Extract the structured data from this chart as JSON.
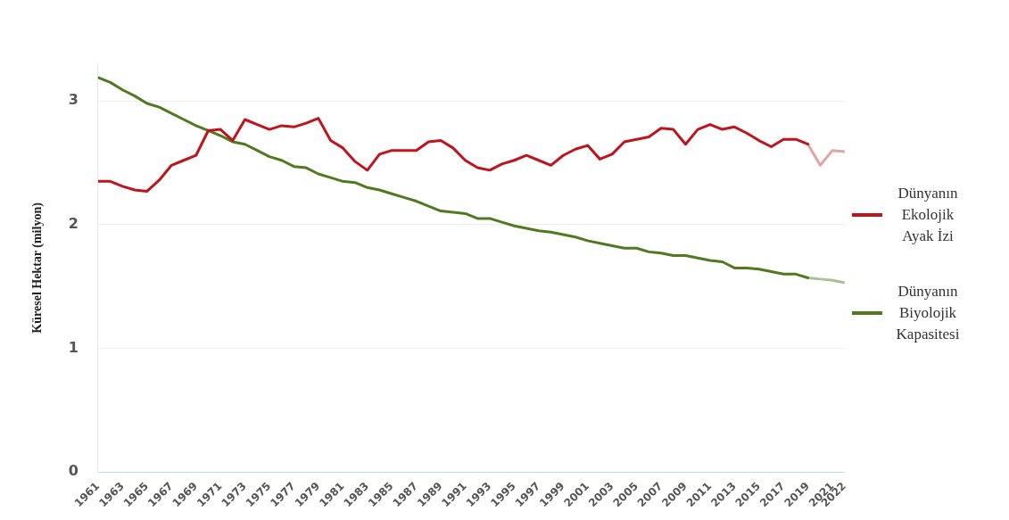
{
  "chart_data": {
    "type": "line",
    "ylabel": "Küresel Hektar (milyon)",
    "x": [
      1961,
      1962,
      1963,
      1964,
      1965,
      1966,
      1967,
      1968,
      1969,
      1970,
      1971,
      1972,
      1973,
      1974,
      1975,
      1976,
      1977,
      1978,
      1979,
      1980,
      1981,
      1982,
      1983,
      1984,
      1985,
      1986,
      1987,
      1988,
      1989,
      1990,
      1991,
      1992,
      1993,
      1994,
      1995,
      1996,
      1997,
      1998,
      1999,
      2000,
      2001,
      2002,
      2003,
      2004,
      2005,
      2006,
      2007,
      2008,
      2009,
      2010,
      2011,
      2012,
      2013,
      2014,
      2015,
      2016,
      2017,
      2018,
      2019,
      2020,
      2021,
      2022
    ],
    "series": [
      {
        "name": "Dünyanın Ekolojik Ayak İzi",
        "color": "#c0141c",
        "values": [
          2.35,
          2.35,
          2.31,
          2.28,
          2.27,
          2.36,
          2.48,
          2.52,
          2.56,
          2.76,
          2.77,
          2.68,
          2.85,
          2.81,
          2.77,
          2.8,
          2.79,
          2.82,
          2.86,
          2.68,
          2.62,
          2.51,
          2.44,
          2.57,
          2.6,
          2.6,
          2.6,
          2.67,
          2.68,
          2.62,
          2.52,
          2.46,
          2.44,
          2.49,
          2.52,
          2.56,
          2.52,
          2.48,
          2.56,
          2.61,
          2.64,
          2.53,
          2.57,
          2.67,
          2.69,
          2.71,
          2.78,
          2.77,
          2.65,
          2.77,
          2.81,
          2.77,
          2.79,
          2.74,
          2.68,
          2.63,
          2.69,
          2.69,
          2.65,
          null,
          null,
          null
        ]
      },
      {
        "name": "Dünyanın Biyolojik Kapasitesi",
        "color": "#4f7a1e",
        "values": [
          3.19,
          3.15,
          3.09,
          3.04,
          2.98,
          2.95,
          2.9,
          2.85,
          2.8,
          2.76,
          2.72,
          2.67,
          2.65,
          2.6,
          2.55,
          2.52,
          2.47,
          2.46,
          2.41,
          2.38,
          2.35,
          2.34,
          2.3,
          2.28,
          2.25,
          2.22,
          2.19,
          2.15,
          2.11,
          2.1,
          2.09,
          2.05,
          2.05,
          2.02,
          1.99,
          1.97,
          1.95,
          1.94,
          1.92,
          1.9,
          1.87,
          1.85,
          1.83,
          1.81,
          1.81,
          1.78,
          1.77,
          1.75,
          1.75,
          1.73,
          1.71,
          1.7,
          1.65,
          1.65,
          1.64,
          1.62,
          1.6,
          1.6,
          1.57,
          null,
          null,
          null
        ]
      },
      {
        "color": "#e2a3a6",
        "values": [
          null,
          null,
          null,
          null,
          null,
          null,
          null,
          null,
          null,
          null,
          null,
          null,
          null,
          null,
          null,
          null,
          null,
          null,
          null,
          null,
          null,
          null,
          null,
          null,
          null,
          null,
          null,
          null,
          null,
          null,
          null,
          null,
          null,
          null,
          null,
          null,
          null,
          null,
          null,
          null,
          null,
          null,
          null,
          null,
          null,
          null,
          null,
          null,
          null,
          null,
          null,
          null,
          null,
          null,
          null,
          null,
          null,
          null,
          2.65,
          2.48,
          2.6,
          2.59
        ]
      },
      {
        "color": "#abc095",
        "values": [
          null,
          null,
          null,
          null,
          null,
          null,
          null,
          null,
          null,
          null,
          null,
          null,
          null,
          null,
          null,
          null,
          null,
          null,
          null,
          null,
          null,
          null,
          null,
          null,
          null,
          null,
          null,
          null,
          null,
          null,
          null,
          null,
          null,
          null,
          null,
          null,
          null,
          null,
          null,
          null,
          null,
          null,
          null,
          null,
          null,
          null,
          null,
          null,
          null,
          null,
          null,
          null,
          null,
          null,
          null,
          null,
          null,
          null,
          1.57,
          1.56,
          1.55,
          1.53
        ]
      }
    ],
    "xlim": [
      1961,
      2022
    ],
    "xticks": [
      1961,
      1963,
      1965,
      1967,
      1969,
      1971,
      1973,
      1975,
      1977,
      1979,
      1981,
      1983,
      1985,
      1987,
      1989,
      1991,
      1993,
      1995,
      1997,
      1999,
      2001,
      2003,
      2005,
      2007,
      2009,
      2011,
      2013,
      2015,
      2017,
      2019,
      2021,
      2022
    ],
    "ylim": [
      0,
      3.3
    ],
    "yticks": [
      0,
      1,
      2,
      3
    ],
    "grid": "y",
    "legend": "right",
    "marker": "none",
    "line_style": "solid"
  }
}
